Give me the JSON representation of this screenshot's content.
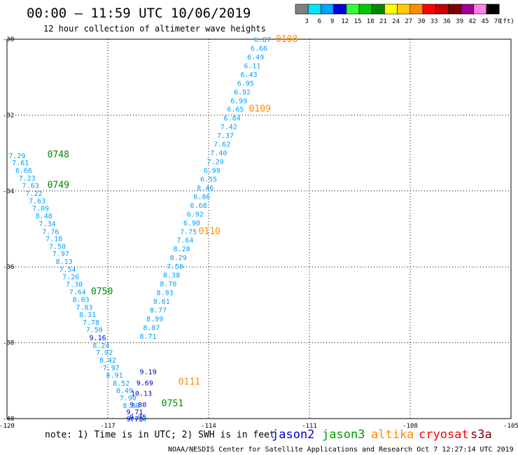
{
  "header": {
    "title": "00:00 – 11:59 UTC 10/06/2019",
    "subtitle": "12 hour collection of altimeter wave heights"
  },
  "colorbar": {
    "unit_label": "(ft)",
    "bins": [
      {
        "label": "3",
        "color": "#808080"
      },
      {
        "label": "6",
        "color": "#00e5ff"
      },
      {
        "label": "9",
        "color": "#00a0ff"
      },
      {
        "label": "12",
        "color": "#0000d8"
      },
      {
        "label": "15",
        "color": "#33ff33"
      },
      {
        "label": "18",
        "color": "#00c800"
      },
      {
        "label": "21",
        "color": "#008800"
      },
      {
        "label": "24",
        "color": "#ffff00"
      },
      {
        "label": "27",
        "color": "#ffcc00"
      },
      {
        "label": "30",
        "color": "#ff8c00"
      },
      {
        "label": "33",
        "color": "#ff0000"
      },
      {
        "label": "36",
        "color": "#c80000"
      },
      {
        "label": "39",
        "color": "#800000"
      },
      {
        "label": "42",
        "color": "#a00090"
      },
      {
        "label": "45",
        "color": "#ff80e0"
      },
      {
        "label": "70",
        "color": "#000000"
      }
    ]
  },
  "chart_data": {
    "type": "scatter",
    "xlim": [
      -120,
      -105
    ],
    "ylim": [
      -40,
      -30
    ],
    "x_ticks": [
      {
        "value": -120,
        "label": "-120"
      },
      {
        "value": -117,
        "label": "-117"
      },
      {
        "value": -114,
        "label": "-114"
      },
      {
        "value": -111,
        "label": "-111"
      },
      {
        "value": -108,
        "label": "-108"
      },
      {
        "value": -105,
        "label": "-105"
      }
    ],
    "y_ticks": [
      {
        "value": -30,
        "label": "-30"
      },
      {
        "value": -32,
        "label": "-32"
      },
      {
        "value": -34,
        "label": "-34"
      },
      {
        "value": -36,
        "label": "-36"
      },
      {
        "value": -38,
        "label": "-38"
      },
      {
        "value": -40,
        "label": "-40"
      }
    ],
    "grid": true,
    "series": [
      {
        "name": "jason3",
        "color": "#00a0ff",
        "points": [
          {
            "x": -119.7,
            "y": -33.06,
            "v": "7.29"
          },
          {
            "x": -119.6,
            "y": -33.25,
            "v": "7.61"
          },
          {
            "x": -119.5,
            "y": -33.45,
            "v": "6.66"
          },
          {
            "x": -119.4,
            "y": -33.65,
            "v": "7.23"
          },
          {
            "x": -119.3,
            "y": -33.85,
            "v": "7.63"
          },
          {
            "x": -119.2,
            "y": -34.06,
            "v": "7.22"
          },
          {
            "x": -119.1,
            "y": -34.25,
            "v": "7.63"
          },
          {
            "x": -119.0,
            "y": -34.45,
            "v": "7.09"
          },
          {
            "x": -118.9,
            "y": -34.65,
            "v": "8.48"
          },
          {
            "x": -118.8,
            "y": -34.85,
            "v": "7.34"
          },
          {
            "x": -118.7,
            "y": -35.06,
            "v": "7.76"
          },
          {
            "x": -118.6,
            "y": -35.25,
            "v": "7.18"
          },
          {
            "x": -118.5,
            "y": -35.45,
            "v": "7.50"
          },
          {
            "x": -118.4,
            "y": -35.65,
            "v": "7.97"
          },
          {
            "x": -118.3,
            "y": -35.85,
            "v": "8.13"
          },
          {
            "x": -118.2,
            "y": -36.06,
            "v": "7.54"
          },
          {
            "x": -118.1,
            "y": -36.25,
            "v": "7.26"
          },
          {
            "x": -118.0,
            "y": -36.45,
            "v": "7.30"
          },
          {
            "x": -117.9,
            "y": -36.65,
            "v": "7.64"
          },
          {
            "x": -117.8,
            "y": -36.85,
            "v": "8.03"
          },
          {
            "x": -117.7,
            "y": -37.06,
            "v": "7.83"
          },
          {
            "x": -117.6,
            "y": -37.25,
            "v": "8.31"
          },
          {
            "x": -117.5,
            "y": -37.45,
            "v": "7.78"
          },
          {
            "x": -117.4,
            "y": -37.65,
            "v": "7.50"
          },
          {
            "x": -117.2,
            "y": -38.06,
            "v": "8.24"
          },
          {
            "x": -117.1,
            "y": -38.25,
            "v": "7.92"
          },
          {
            "x": -117.0,
            "y": -38.45,
            "v": "8.42"
          },
          {
            "x": -116.9,
            "y": -38.65,
            "v": "7.97"
          },
          {
            "x": -116.8,
            "y": -38.85,
            "v": "8.91"
          },
          {
            "x": -116.6,
            "y": -39.06,
            "v": "8.52"
          },
          {
            "x": -116.5,
            "y": -39.25,
            "v": "8.49"
          },
          {
            "x": -116.4,
            "y": -39.45,
            "v": "7.90"
          },
          {
            "x": -116.3,
            "y": -39.65,
            "v": "8.39"
          },
          {
            "x": -116.1,
            "y": -40.0,
            "v": "7.76"
          }
        ]
      },
      {
        "name": "jason2",
        "color": "#0000d8",
        "points": [
          {
            "x": -117.3,
            "y": -37.86,
            "v": "9.16"
          },
          {
            "x": -115.9,
            "y": -39.05,
            "v": "9.69"
          },
          {
            "x": -116.0,
            "y": -39.33,
            "v": "10.13"
          },
          {
            "x": -116.1,
            "y": -39.62,
            "v": "9.80"
          },
          {
            "x": -116.2,
            "y": -39.82,
            "v": "9.71"
          },
          {
            "x": -116.1,
            "y": -39.95,
            "v": "9.75"
          },
          {
            "x": -116.2,
            "y": -40.0,
            "v": "9.73"
          },
          {
            "x": -115.8,
            "y": -38.75,
            "v": "9.19"
          }
        ]
      },
      {
        "name": "altika",
        "color": "#00a0ff",
        "points": [
          {
            "x": -112.4,
            "y": -30.0,
            "v": "6.87"
          },
          {
            "x": -112.5,
            "y": -30.23,
            "v": "6.66"
          },
          {
            "x": -112.6,
            "y": -30.46,
            "v": "6.49"
          },
          {
            "x": -112.7,
            "y": -30.69,
            "v": "6.11"
          },
          {
            "x": -112.8,
            "y": -30.92,
            "v": "6.43"
          },
          {
            "x": -112.9,
            "y": -31.15,
            "v": "6.95"
          },
          {
            "x": -113.0,
            "y": -31.38,
            "v": "6.92"
          },
          {
            "x": -113.1,
            "y": -31.61,
            "v": "6.99"
          },
          {
            "x": -113.2,
            "y": -31.84,
            "v": "6.65"
          },
          {
            "x": -113.3,
            "y": -32.07,
            "v": "6.84"
          },
          {
            "x": -113.4,
            "y": -32.3,
            "v": "7.42"
          },
          {
            "x": -113.5,
            "y": -32.53,
            "v": "7.37"
          },
          {
            "x": -113.6,
            "y": -32.76,
            "v": "7.62"
          },
          {
            "x": -113.7,
            "y": -32.99,
            "v": "7.40"
          },
          {
            "x": -113.8,
            "y": -33.22,
            "v": "7.29"
          },
          {
            "x": -113.9,
            "y": -33.45,
            "v": "6.99"
          },
          {
            "x": -114.0,
            "y": -33.68,
            "v": "6.55"
          },
          {
            "x": -114.1,
            "y": -33.91,
            "v": "8.46"
          },
          {
            "x": -114.2,
            "y": -34.14,
            "v": "6.86"
          },
          {
            "x": -114.3,
            "y": -34.37,
            "v": "6.68"
          },
          {
            "x": -114.4,
            "y": -34.6,
            "v": "6.92"
          },
          {
            "x": -114.5,
            "y": -34.83,
            "v": "6.90"
          },
          {
            "x": -114.6,
            "y": -35.06,
            "v": "7.75"
          },
          {
            "x": -114.7,
            "y": -35.29,
            "v": "7.64"
          },
          {
            "x": -114.8,
            "y": -35.52,
            "v": "8.28"
          },
          {
            "x": -114.9,
            "y": -35.75,
            "v": "8.29"
          },
          {
            "x": -115.0,
            "y": -35.98,
            "v": "7.50"
          },
          {
            "x": -115.1,
            "y": -36.21,
            "v": "8.38"
          },
          {
            "x": -115.2,
            "y": -36.44,
            "v": "8.70"
          },
          {
            "x": -115.3,
            "y": -36.67,
            "v": "8.93"
          },
          {
            "x": -115.4,
            "y": -36.9,
            "v": "8.61"
          },
          {
            "x": -115.5,
            "y": -37.13,
            "v": "8.77"
          },
          {
            "x": -115.6,
            "y": -37.36,
            "v": "8.99"
          },
          {
            "x": -115.7,
            "y": -37.59,
            "v": "8.87"
          },
          {
            "x": -115.8,
            "y": -37.82,
            "v": "8.71"
          }
        ]
      }
    ],
    "pass_labels": [
      {
        "text": "0108",
        "x": -112.0,
        "y": -30.0,
        "color": "#ff8c00"
      },
      {
        "text": "0109",
        "x": -112.8,
        "y": -31.84,
        "color": "#ff8c00"
      },
      {
        "text": "0110",
        "x": -114.3,
        "y": -35.06,
        "color": "#ff8c00"
      },
      {
        "text": "0111",
        "x": -114.9,
        "y": -39.03,
        "color": "#ff8c00"
      },
      {
        "text": "0748",
        "x": -118.8,
        "y": -33.04,
        "color": "#008800"
      },
      {
        "text": "0749",
        "x": -118.8,
        "y": -33.85,
        "color": "#008800"
      },
      {
        "text": "0750",
        "x": -117.5,
        "y": -36.65,
        "color": "#008800"
      },
      {
        "text": "0751",
        "x": -115.4,
        "y": -39.6,
        "color": "#008800"
      }
    ]
  },
  "footer": {
    "note": "note: 1) Time is in UTC; 2) SWH is in feet",
    "satellites": [
      {
        "name": "jason2",
        "color": "#0000cc"
      },
      {
        "name": "jason3",
        "color": "#009900"
      },
      {
        "name": "altika",
        "color": "#ff8c00"
      },
      {
        "name": "cryosat",
        "color": "#ff0000"
      },
      {
        "name": "s3a",
        "color": "#800000"
      }
    ],
    "credit": "NOAA/NESDIS Center for Satellite Applications and Research    Oct  7 12:27:14 UTC 2019"
  }
}
